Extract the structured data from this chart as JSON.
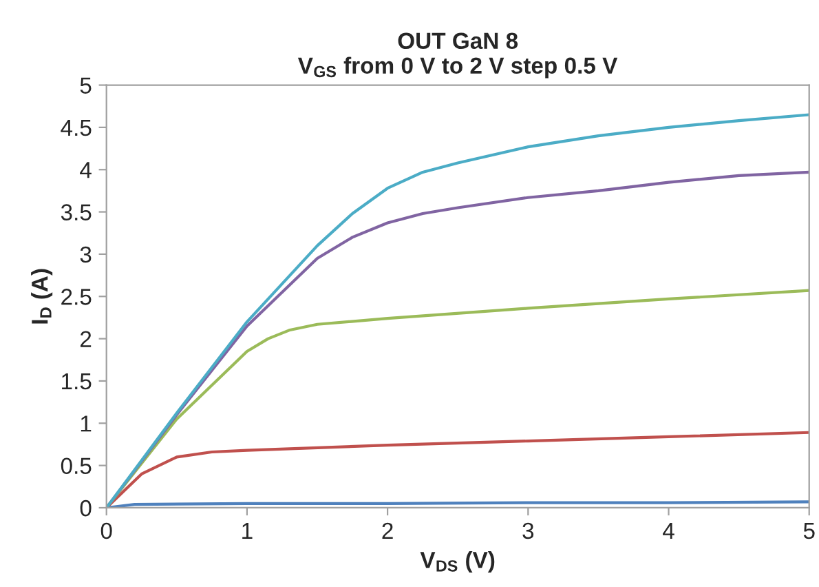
{
  "chart_data": {
    "type": "line",
    "title": "OUT GaN 8\nV$_{GS}$ from 0 V to 2 V step 0.5 V",
    "xlabel": "V$_{DS}$ (V)",
    "ylabel": "I$_{D}$ (A)",
    "xlim": [
      0,
      5
    ],
    "xticks": [
      0,
      1,
      2,
      3,
      4,
      5
    ],
    "ylim": [
      0,
      5
    ],
    "yticks": [
      0,
      0.5,
      1,
      1.5,
      2,
      2.5,
      3,
      3.5,
      4,
      4.5,
      5
    ],
    "grid": false,
    "marker": "none",
    "line_style": "solid",
    "series": [
      {
        "color": "#4f81bd",
        "x": [
          0,
          0.2,
          1,
          2,
          3,
          4,
          5
        ],
        "values": [
          0,
          0.04,
          0.05,
          0.05,
          0.06,
          0.06,
          0.07
        ]
      },
      {
        "color": "#c0504d",
        "x": [
          0,
          0.25,
          0.5,
          0.75,
          1,
          2,
          3,
          4,
          5
        ],
        "values": [
          0,
          0.4,
          0.6,
          0.66,
          0.68,
          0.74,
          0.79,
          0.84,
          0.89
        ]
      },
      {
        "color": "#9bbb59",
        "x": [
          0,
          0.5,
          1,
          1.15,
          1.3,
          1.5,
          2,
          3,
          4,
          5
        ],
        "values": [
          0,
          1.05,
          1.85,
          2.0,
          2.1,
          2.17,
          2.24,
          2.36,
          2.47,
          2.57
        ]
      },
      {
        "color": "#8064a2",
        "x": [
          0,
          0.5,
          1,
          1.5,
          1.75,
          2,
          2.25,
          2.5,
          3,
          3.5,
          4,
          4.5,
          5
        ],
        "values": [
          0,
          1.1,
          2.15,
          2.95,
          3.2,
          3.37,
          3.48,
          3.55,
          3.67,
          3.75,
          3.85,
          3.93,
          3.97
        ]
      },
      {
        "color": "#4bacc6",
        "x": [
          0,
          0.5,
          1,
          1.5,
          1.75,
          2,
          2.25,
          2.5,
          3,
          3.5,
          4,
          4.5,
          5
        ],
        "values": [
          0,
          1.12,
          2.2,
          3.1,
          3.48,
          3.78,
          3.97,
          4.08,
          4.27,
          4.4,
          4.5,
          4.58,
          4.65
        ]
      }
    ]
  }
}
